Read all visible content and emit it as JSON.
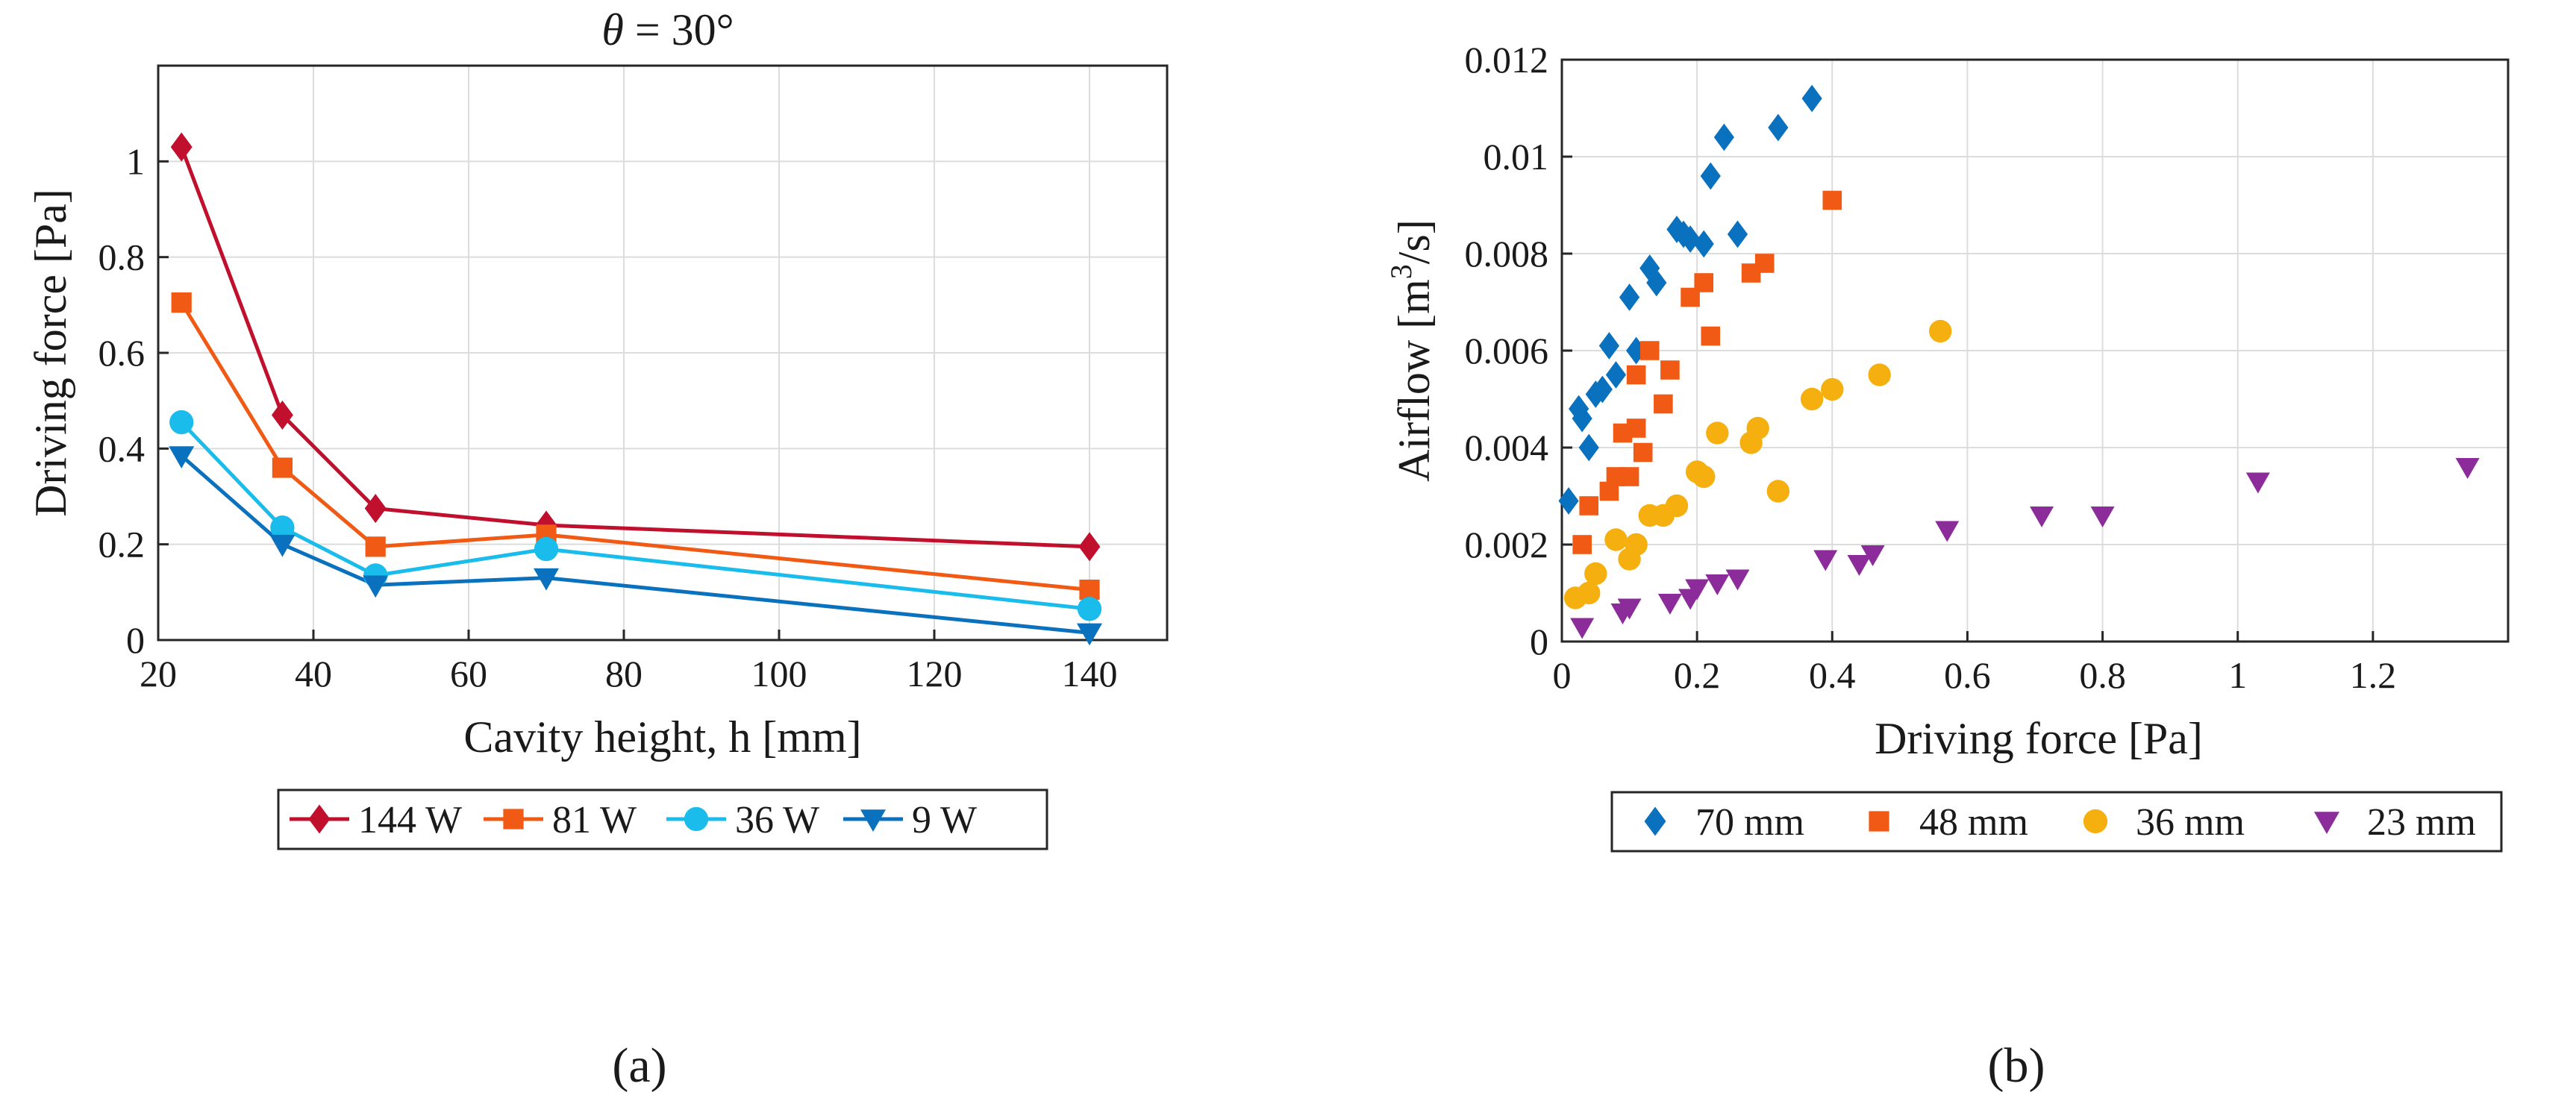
{
  "chart_data": [
    {
      "type": "line",
      "panel_label": "(a)",
      "title": "θ = 30°",
      "title_symbol": "θ",
      "title_rest": " = 30°",
      "xlabel": "Cavity height, h [mm]",
      "ylabel": "Driving force [Pa]",
      "xlim": [
        20,
        150
      ],
      "ylim": [
        0,
        1.2
      ],
      "xticks": [
        20,
        40,
        60,
        80,
        100,
        120,
        140
      ],
      "yticks": [
        0,
        0.2,
        0.4,
        0.6,
        0.8,
        1
      ],
      "ytick_labels": [
        "0",
        "0.2",
        "0.4",
        "0.6",
        "0.8",
        "1"
      ],
      "grid": true,
      "legend_position": "bottom-outside",
      "x": [
        23,
        36,
        48,
        70,
        140
      ],
      "series": [
        {
          "name": "144 W",
          "marker": "diamond",
          "color": "#C0102E",
          "values": [
            1.03,
            0.47,
            0.275,
            0.24,
            0.195
          ]
        },
        {
          "name": "81 W",
          "marker": "square",
          "color": "#F05A14",
          "values": [
            0.705,
            0.36,
            0.195,
            0.22,
            0.105
          ]
        },
        {
          "name": "36 W",
          "marker": "circle",
          "color": "#1ABCEB",
          "values": [
            0.455,
            0.235,
            0.135,
            0.19,
            0.065
          ]
        },
        {
          "name": "9 W",
          "marker": "triangle-down",
          "color": "#0A71BE",
          "values": [
            0.385,
            0.2,
            0.115,
            0.13,
            0.015
          ]
        }
      ]
    },
    {
      "type": "scatter",
      "panel_label": "(b)",
      "title": "",
      "xlabel": "Driving force [Pa]",
      "ylabel_main": "Airflow [m",
      "ylabel_sup": "3",
      "ylabel_end": "/s]",
      "xlim": [
        0,
        1.4
      ],
      "ylim": [
        0,
        0.012
      ],
      "xticks": [
        0,
        0.2,
        0.4,
        0.6,
        0.8,
        1,
        1.2
      ],
      "xtick_labels": [
        "0",
        "0.2",
        "0.4",
        "0.6",
        "0.8",
        "1",
        "1.2"
      ],
      "yticks": [
        0,
        0.002,
        0.004,
        0.006,
        0.008,
        0.01,
        0.012
      ],
      "ytick_labels": [
        "0",
        "0.002",
        "0.004",
        "0.006",
        "0.008",
        "0.01",
        "0.012"
      ],
      "grid": true,
      "legend_position": "bottom-outside",
      "series": [
        {
          "name": "70 mm",
          "marker": "diamond",
          "color": "#0A71BE",
          "x": [
            0.01,
            0.025,
            0.03,
            0.04,
            0.05,
            0.06,
            0.07,
            0.08,
            0.1,
            0.11,
            0.13,
            0.14,
            0.17,
            0.18,
            0.19,
            0.21,
            0.22,
            0.24,
            0.26,
            0.32,
            0.37
          ],
          "y": [
            0.0029,
            0.0048,
            0.0046,
            0.004,
            0.0051,
            0.0052,
            0.0061,
            0.0055,
            0.0071,
            0.006,
            0.0077,
            0.0074,
            0.0085,
            0.0084,
            0.0083,
            0.0082,
            0.0096,
            0.0104,
            0.0084,
            0.0106,
            0.0112
          ]
        },
        {
          "name": "48 mm",
          "marker": "square",
          "color": "#F05A14",
          "x": [
            0.03,
            0.04,
            0.07,
            0.08,
            0.09,
            0.1,
            0.11,
            0.11,
            0.12,
            0.13,
            0.15,
            0.16,
            0.19,
            0.21,
            0.22,
            0.28,
            0.3,
            0.4
          ],
          "y": [
            0.002,
            0.0028,
            0.0031,
            0.0034,
            0.0043,
            0.0034,
            0.0044,
            0.0055,
            0.0039,
            0.006,
            0.0049,
            0.0056,
            0.0071,
            0.0074,
            0.0063,
            0.0076,
            0.0078,
            0.0091
          ]
        },
        {
          "name": "36 mm",
          "marker": "circle",
          "color": "#F5B00F",
          "x": [
            0.02,
            0.04,
            0.05,
            0.08,
            0.1,
            0.11,
            0.13,
            0.15,
            0.17,
            0.2,
            0.21,
            0.23,
            0.28,
            0.29,
            0.32,
            0.37,
            0.4,
            0.47,
            0.56
          ],
          "y": [
            0.0009,
            0.001,
            0.0014,
            0.0021,
            0.0017,
            0.002,
            0.0026,
            0.0026,
            0.0028,
            0.0035,
            0.0034,
            0.0043,
            0.0041,
            0.0044,
            0.0031,
            0.005,
            0.0052,
            0.0055,
            0.0064
          ]
        },
        {
          "name": "23 mm",
          "marker": "triangle-down",
          "color": "#8B2C9A",
          "x": [
            0.03,
            0.09,
            0.1,
            0.16,
            0.19,
            0.2,
            0.23,
            0.26,
            0.39,
            0.44,
            0.46,
            0.57,
            0.71,
            0.8,
            1.03,
            1.34
          ],
          "y": [
            0.0003,
            0.0006,
            0.0007,
            0.0008,
            0.0009,
            0.0011,
            0.0012,
            0.0013,
            0.0017,
            0.0016,
            0.0018,
            0.0023,
            0.0026,
            0.0026,
            0.0033,
            0.0036
          ]
        }
      ]
    }
  ]
}
